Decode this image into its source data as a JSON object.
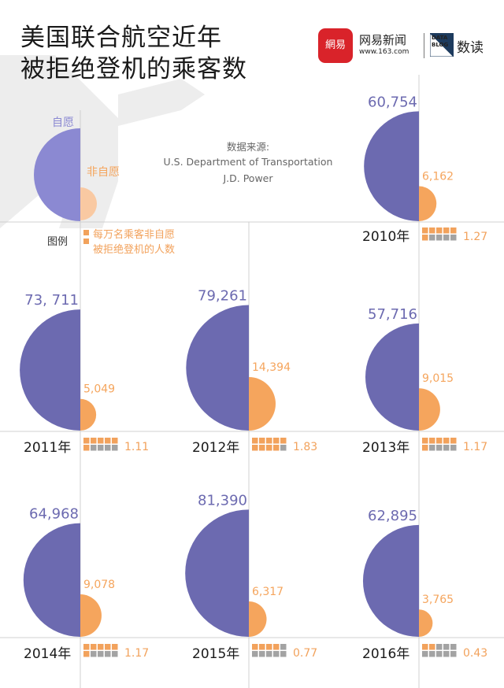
{
  "title": {
    "line1": "美国联合航空近年",
    "line2": "被拒绝登机的乘客数"
  },
  "brand": {
    "logo": "網易",
    "name": "网易新闻",
    "url": "www.163.com",
    "badge": "DATA BLOG",
    "column": "数读"
  },
  "source": {
    "heading": "数据来源:",
    "line1": "U.S. Department of Transportation",
    "line2": "J.D. Power"
  },
  "example": {
    "voluntary_label": "自愿",
    "involuntary_label": "非自愿"
  },
  "legend": {
    "label": "图例",
    "text1": "每万名乘客非自愿",
    "text2": "被拒绝登机的人数"
  },
  "colors": {
    "voluntary": "#6c6ab0",
    "involuntary": "#f5a55d",
    "legend_grid": "#a3a3a3",
    "legend_accent": "#f2a25c",
    "example_voluntary": "#8b89d2"
  },
  "chart_data": {
    "type": "pie",
    "series_names": {
      "voluntary": "自愿",
      "involuntary": "非自愿"
    },
    "years": [
      {
        "year": "2010年",
        "voluntary": 60754,
        "involuntary": 6162,
        "voluntary_label": "60,754",
        "involuntary_label": "6,162",
        "rate": 1.27,
        "rate_label": "1.27"
      },
      {
        "year": "2011年",
        "voluntary": 73711,
        "involuntary": 5049,
        "voluntary_label": "73, 711",
        "involuntary_label": "5,049",
        "rate": 1.11,
        "rate_label": "1.11"
      },
      {
        "year": "2012年",
        "voluntary": 79261,
        "involuntary": 14394,
        "voluntary_label": "79,261",
        "involuntary_label": "14,394",
        "rate": 1.83,
        "rate_label": "1.83"
      },
      {
        "year": "2013年",
        "voluntary": 57716,
        "involuntary": 9015,
        "voluntary_label": "57,716",
        "involuntary_label": "9,015",
        "rate": 1.17,
        "rate_label": "1.17"
      },
      {
        "year": "2014年",
        "voluntary": 64968,
        "involuntary": 9078,
        "voluntary_label": "64,968",
        "involuntary_label": "9,078",
        "rate": 1.17,
        "rate_label": "1.17"
      },
      {
        "year": "2015年",
        "voluntary": 81390,
        "involuntary": 6317,
        "voluntary_label": "81,390",
        "involuntary_label": "6,317",
        "rate": 0.77,
        "rate_label": "0.77"
      },
      {
        "year": "2016年",
        "voluntary": 62895,
        "involuntary": 3765,
        "voluntary_label": "62,895",
        "involuntary_label": "3,765",
        "rate": 0.43,
        "rate_label": "0.43"
      }
    ]
  }
}
